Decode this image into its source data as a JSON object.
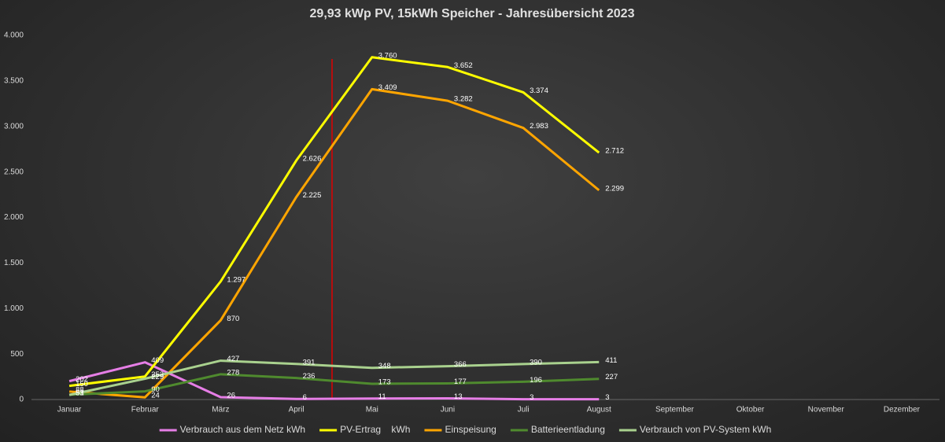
{
  "chart_data": {
    "type": "line",
    "title": "29,93 kWp PV, 15kWh Speicher - Jahresübersicht 2023",
    "categories": [
      "Januar",
      "Februar",
      "März",
      "April",
      "Mai",
      "Juni",
      "Juli",
      "August",
      "September",
      "Oktober",
      "November",
      "Dezember"
    ],
    "series": [
      {
        "name": "Verbrauch aus dem Netz kWh",
        "color": "#e67ee6",
        "values": [
          202,
          409,
          26,
          6,
          11,
          13,
          3,
          3,
          null,
          null,
          null,
          null
        ]
      },
      {
        "name": "PV-Ertrag    kWh",
        "color": "#ffff00",
        "values": [
          150,
          253,
          1297,
          2626,
          3760,
          3652,
          3374,
          2712,
          null,
          null,
          null,
          null
        ],
        "value_labels": [
          "150",
          "253",
          "1.297",
          "2.626",
          "3.760",
          "3.652",
          "3.374",
          "2.712",
          null,
          null,
          null,
          null
        ]
      },
      {
        "name": "Einspeisung",
        "color": "#ffa500",
        "values": [
          88,
          24,
          870,
          2225,
          3409,
          3282,
          2983,
          2299,
          null,
          null,
          null,
          null
        ],
        "value_labels": [
          "88",
          "24",
          "870",
          "2.225",
          "3.409",
          "3.282",
          "2.983",
          "2.299",
          null,
          null,
          null,
          null
        ]
      },
      {
        "name": "Batterieentladung",
        "color": "#4f8a2e",
        "values": [
          53,
          90,
          278,
          236,
          173,
          177,
          196,
          227,
          null,
          null,
          null,
          null
        ]
      },
      {
        "name": "Verbrauch von PV-System kWh",
        "color": "#a9d18e",
        "values": [
          51,
          229,
          427,
          391,
          348,
          366,
          390,
          411,
          null,
          null,
          null,
          null
        ]
      }
    ],
    "ylim": [
      0,
      4000
    ],
    "yticks": [
      0,
      {
        "value": 500,
        "label": "500"
      },
      {
        "value": 1000,
        "label": "1.000"
      },
      {
        "value": 1500,
        "label": "1.500"
      },
      {
        "value": 2000,
        "label": "2.000"
      },
      {
        "value": 2500,
        "label": "2.500"
      },
      {
        "value": 3000,
        "label": "3.000"
      },
      {
        "value": 3500,
        "label": "3.500"
      },
      {
        "value": 4000,
        "label": "4.000"
      }
    ],
    "grid": false
  }
}
